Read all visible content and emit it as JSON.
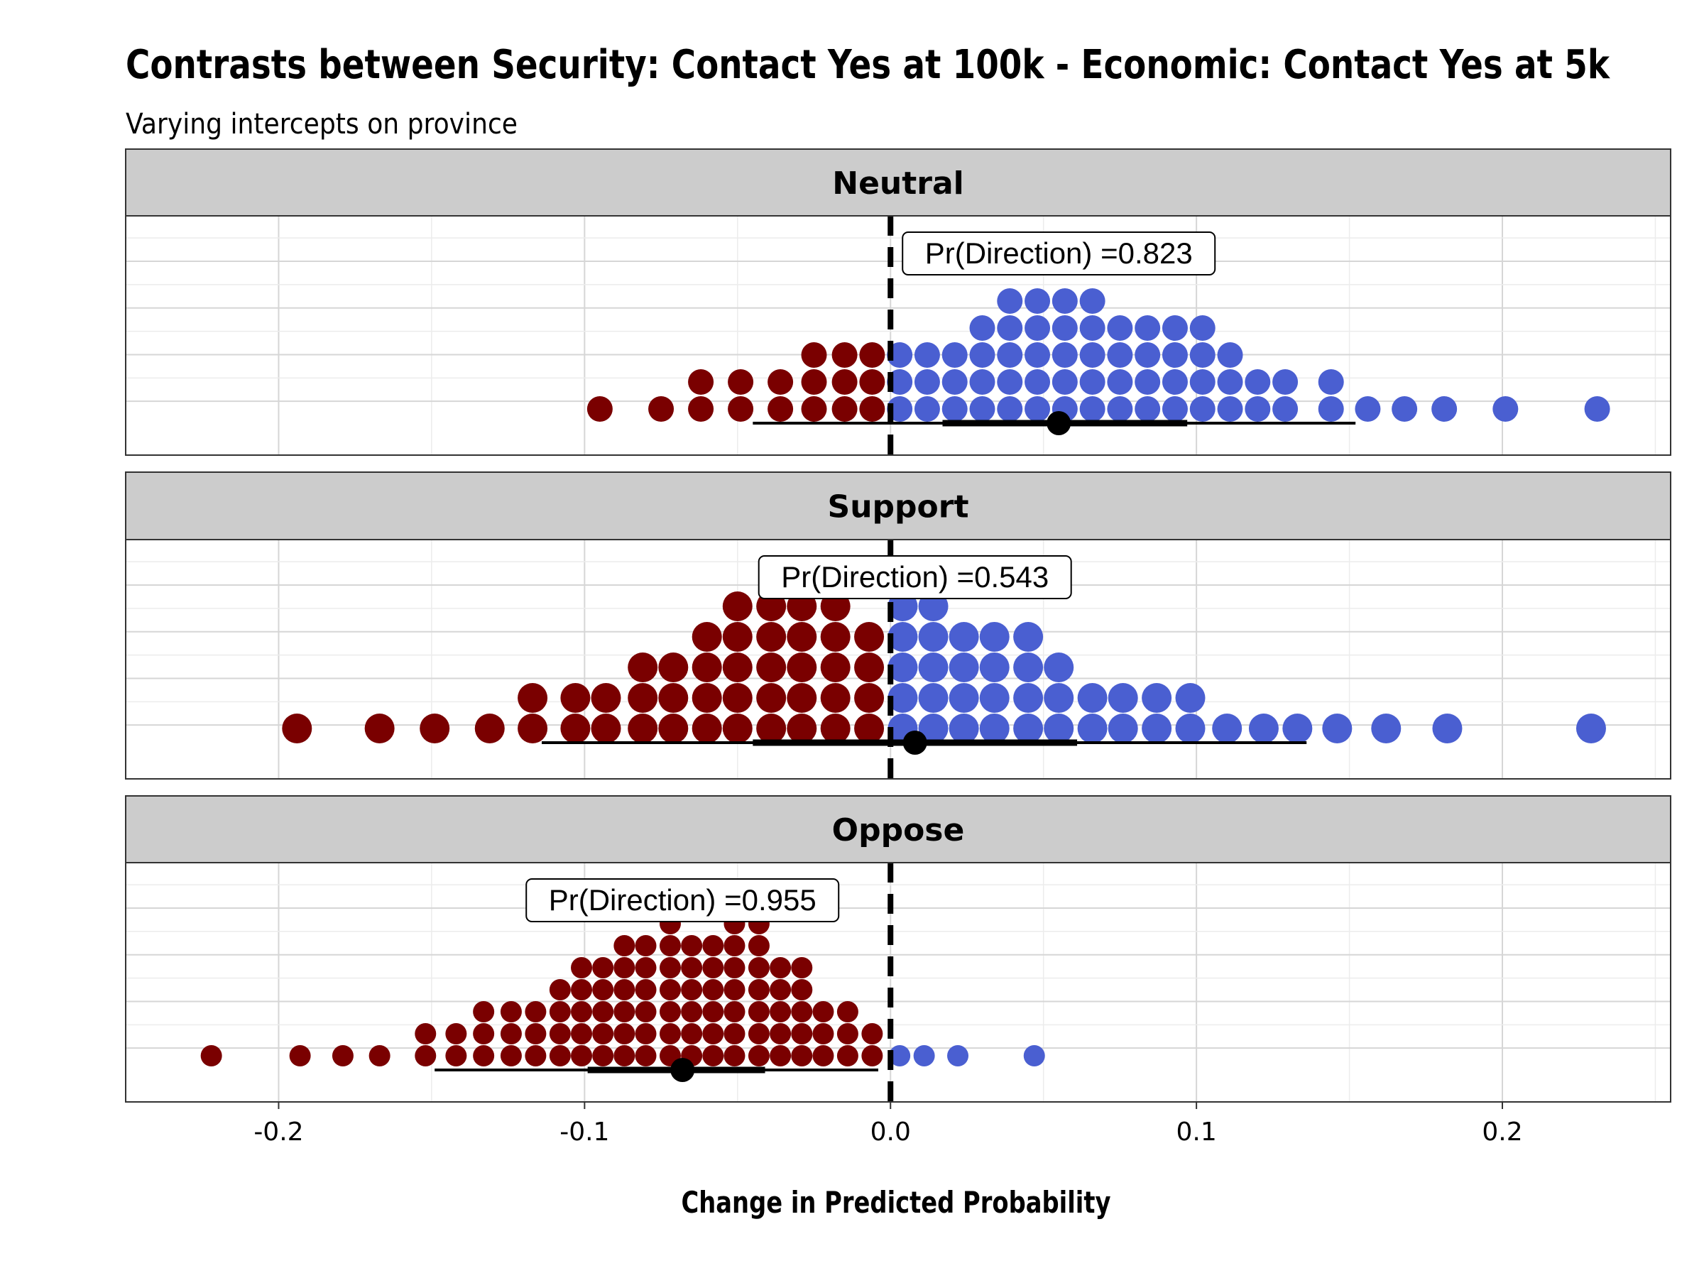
{
  "chart_data": {
    "type": "dotplot",
    "title": "Contrasts between Security: Contact Yes at 100k - Economic: Contact Yes at 5k",
    "subtitle": "Varying intercepts on province",
    "xlabel": "Change in Predicted Probability",
    "xlim": [
      -0.25,
      0.255
    ],
    "xticks": [
      "-0.2",
      "-0.1",
      "0.0",
      "0.1",
      "0.2"
    ],
    "reference_line": 0.0,
    "grid": true,
    "colors": {
      "negative": "#7a0000",
      "positive": "#4a5fd1",
      "strip": "#cccccc"
    },
    "panels": [
      {
        "label": "Neutral",
        "annotation": "Pr(Direction) =0.823",
        "annotation_x": 0.055,
        "point_estimate": 0.055,
        "interval_inner": [
          0.017,
          0.097
        ],
        "interval_outer": [
          -0.045,
          0.152
        ],
        "columns": [
          [
            -0.095,
            1
          ],
          [
            -0.075,
            1
          ],
          [
            -0.062,
            2
          ],
          [
            -0.049,
            2
          ],
          [
            -0.036,
            2
          ],
          [
            -0.025,
            3
          ],
          [
            -0.015,
            3
          ],
          [
            -0.006,
            3
          ],
          [
            0.003,
            3
          ],
          [
            0.012,
            3
          ],
          [
            0.021,
            3
          ],
          [
            0.03,
            4
          ],
          [
            0.039,
            5
          ],
          [
            0.048,
            5
          ],
          [
            0.057,
            5
          ],
          [
            0.066,
            5
          ],
          [
            0.075,
            4
          ],
          [
            0.084,
            4
          ],
          [
            0.093,
            4
          ],
          [
            0.102,
            4
          ],
          [
            0.111,
            3
          ],
          [
            0.12,
            2
          ],
          [
            0.129,
            2
          ],
          [
            0.144,
            2
          ],
          [
            0.156,
            1
          ],
          [
            0.168,
            1
          ],
          [
            0.181,
            1
          ],
          [
            0.201,
            1
          ],
          [
            0.231,
            1
          ]
        ]
      },
      {
        "label": "Support",
        "annotation": "Pr(Direction) =0.543",
        "annotation_x": 0.008,
        "point_estimate": 0.008,
        "interval_inner": [
          -0.045,
          0.061
        ],
        "interval_outer": [
          -0.114,
          0.136
        ],
        "columns": [
          [
            -0.194,
            1
          ],
          [
            -0.167,
            1
          ],
          [
            -0.149,
            1
          ],
          [
            -0.131,
            1
          ],
          [
            -0.117,
            2
          ],
          [
            -0.103,
            2
          ],
          [
            -0.093,
            2
          ],
          [
            -0.081,
            3
          ],
          [
            -0.071,
            3
          ],
          [
            -0.06,
            4
          ],
          [
            -0.05,
            5
          ],
          [
            -0.039,
            5
          ],
          [
            -0.029,
            5
          ],
          [
            -0.018,
            5
          ],
          [
            -0.007,
            4
          ],
          [
            0.004,
            5
          ],
          [
            0.014,
            5
          ],
          [
            0.024,
            4
          ],
          [
            0.034,
            4
          ],
          [
            0.045,
            4
          ],
          [
            0.055,
            3
          ],
          [
            0.066,
            2
          ],
          [
            0.076,
            2
          ],
          [
            0.087,
            2
          ],
          [
            0.098,
            2
          ],
          [
            0.11,
            1
          ],
          [
            0.122,
            1
          ],
          [
            0.133,
            1
          ],
          [
            0.146,
            1
          ],
          [
            0.162,
            1
          ],
          [
            0.182,
            1
          ],
          [
            0.229,
            1
          ]
        ]
      },
      {
        "label": "Oppose",
        "annotation": "Pr(Direction) =0.955",
        "annotation_x": -0.068,
        "point_estimate": -0.068,
        "interval_inner": [
          -0.099,
          -0.041
        ],
        "interval_outer": [
          -0.149,
          -0.004
        ],
        "columns": [
          [
            -0.222,
            1
          ],
          [
            -0.193,
            1
          ],
          [
            -0.179,
            1
          ],
          [
            -0.167,
            1
          ],
          [
            -0.152,
            2
          ],
          [
            -0.142,
            2
          ],
          [
            -0.133,
            3
          ],
          [
            -0.124,
            3
          ],
          [
            -0.116,
            3
          ],
          [
            -0.108,
            4
          ],
          [
            -0.101,
            5
          ],
          [
            -0.094,
            5
          ],
          [
            -0.087,
            6
          ],
          [
            -0.08,
            6
          ],
          [
            -0.072,
            7
          ],
          [
            -0.065,
            6
          ],
          [
            -0.058,
            6
          ],
          [
            -0.051,
            7
          ],
          [
            -0.043,
            7
          ],
          [
            -0.036,
            5
          ],
          [
            -0.029,
            5
          ],
          [
            -0.022,
            3
          ],
          [
            -0.014,
            3
          ],
          [
            -0.006,
            2
          ],
          [
            0.003,
            1
          ],
          [
            0.011,
            1
          ],
          [
            0.022,
            1
          ],
          [
            0.047,
            1
          ]
        ]
      }
    ]
  }
}
